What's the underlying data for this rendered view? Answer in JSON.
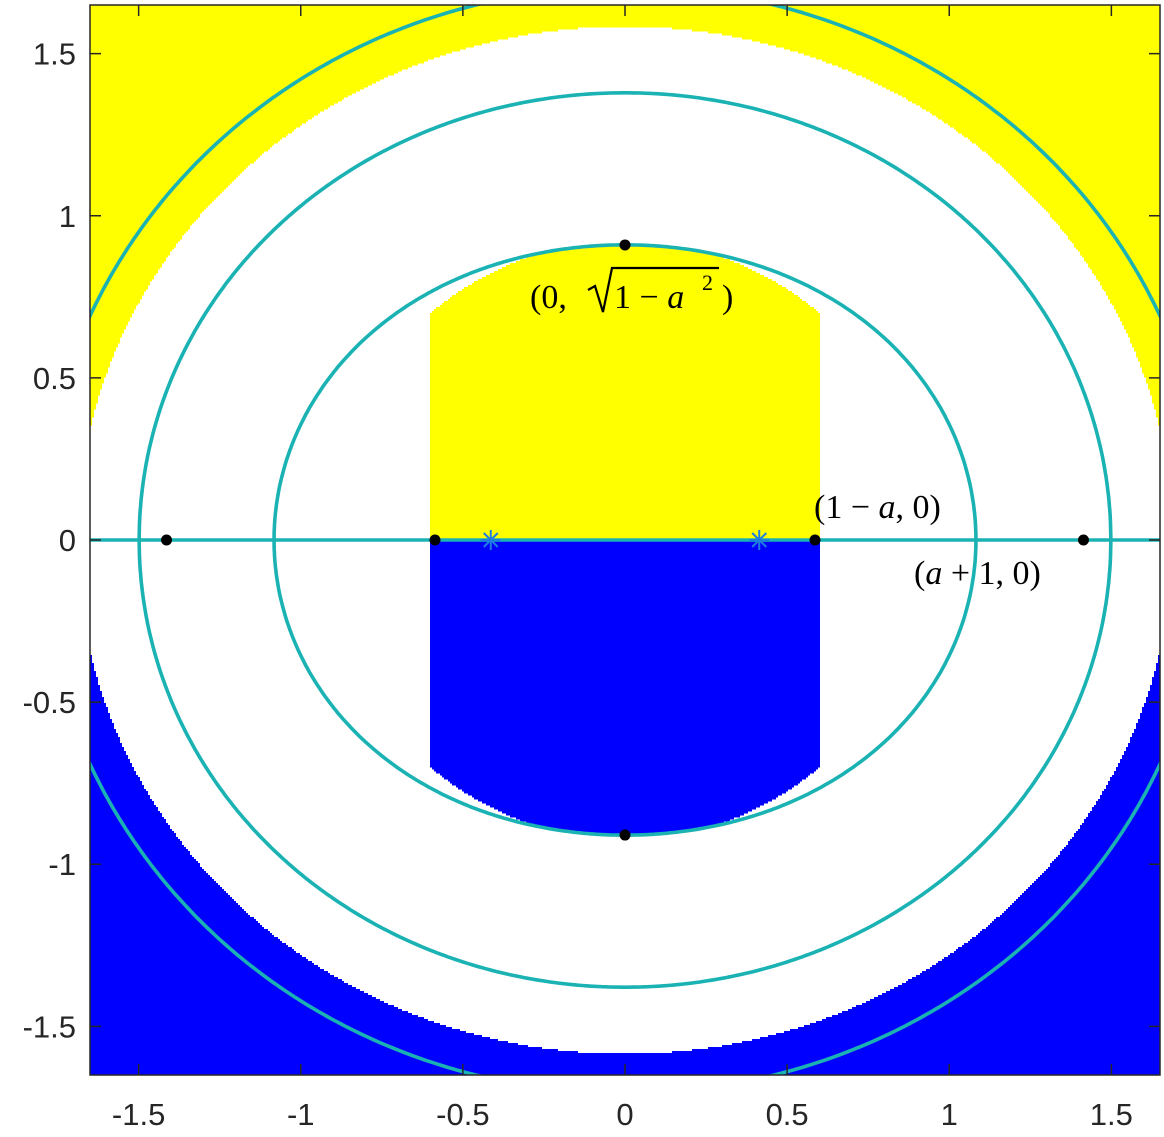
{
  "chart_data": {
    "type": "contour",
    "xlim": [
      -1.65,
      1.65
    ],
    "ylim": [
      -1.65,
      1.65
    ],
    "xticks": [
      -1.5,
      -1,
      -0.5,
      0,
      0.5,
      1,
      1.5
    ],
    "yticks": [
      -1.5,
      -1,
      -0.5,
      0,
      0.5,
      1,
      1.5
    ],
    "xtick_labels": [
      "-1.5",
      "-1",
      "-0.5",
      "0",
      "0.5",
      "1",
      "1.5"
    ],
    "ytick_labels": [
      "-1.5",
      "-1",
      "-0.5",
      "0",
      "0.5",
      "1",
      "1.5"
    ],
    "grid": false,
    "colors": {
      "positive_fill": "#ffff00",
      "negative_fill": "#0000ff",
      "region_outline": "#00ff00",
      "curve": "#1ab2b3",
      "point": "#000000",
      "focus_marker": "#1f7de0"
    },
    "parameter_a": 0.414,
    "foci": [
      [
        -0.414,
        0
      ],
      [
        0.414,
        0
      ]
    ],
    "points": [
      {
        "x": -1.414,
        "y": 0
      },
      {
        "x": -0.586,
        "y": 0
      },
      {
        "x": 0.586,
        "y": 0
      },
      {
        "x": 1.414,
        "y": 0
      },
      {
        "x": 0,
        "y": 0.91
      },
      {
        "x": 0,
        "y": -0.91
      }
    ],
    "annotations": [
      {
        "id": "top",
        "prefix": "(0,",
        "root_text": "1 − ",
        "var": "a",
        "sup": "2",
        "suffix": ")"
      },
      {
        "id": "inner",
        "text_before": "(1 − ",
        "var": "a",
        "text_after": ", 0)"
      },
      {
        "id": "outer",
        "text_before": "(",
        "var": "a",
        "text_after": " + 1, 0)"
      }
    ]
  }
}
